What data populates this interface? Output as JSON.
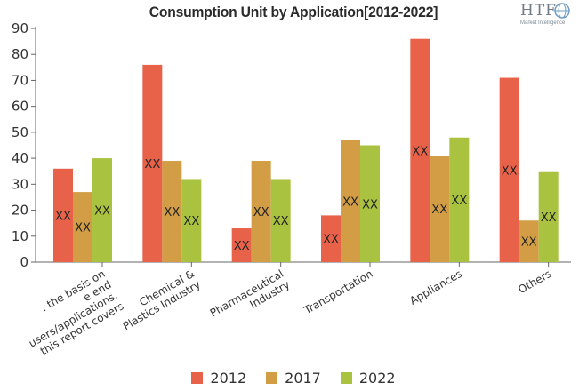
{
  "brand": {
    "logo_text": "HTF",
    "logo_subtext": "Market Intelligence"
  },
  "colors": {
    "2012": "#e8624a",
    "2017": "#d29d45",
    "2022": "#a9c23f",
    "axis": "#666666",
    "text": "#333333"
  },
  "chart_data": {
    "type": "bar",
    "title": "Consumption Unit by  Application[2012-2022]",
    "xlabel": "",
    "ylabel": "",
    "ylim": [
      0,
      90
    ],
    "yticks": [
      0,
      10,
      20,
      30,
      40,
      50,
      60,
      70,
      80,
      90
    ],
    "grid": false,
    "legend_position": "bottom",
    "categories": [
      ". the basis on\ne end\nusers/applications,\nthis report covers",
      "Chemical &\nPlastics Industry",
      "Pharmaceutical\nIndustry",
      "Transportation",
      "Appliances",
      "Others"
    ],
    "series": [
      {
        "name": "2012",
        "values": [
          36,
          76,
          13,
          18,
          86,
          71
        ],
        "labels": [
          "XX",
          "XX",
          "XX",
          "XX",
          "XX",
          "XX"
        ]
      },
      {
        "name": "2017",
        "values": [
          27,
          39,
          39,
          47,
          41,
          16
        ],
        "labels": [
          "XX",
          "XX",
          "XX",
          "XX",
          "XX",
          "XX"
        ]
      },
      {
        "name": "2022",
        "values": [
          40,
          32,
          32,
          45,
          48,
          35
        ],
        "labels": [
          "XX",
          "XX",
          "XX",
          "XX",
          "XX",
          "XX"
        ]
      }
    ]
  }
}
